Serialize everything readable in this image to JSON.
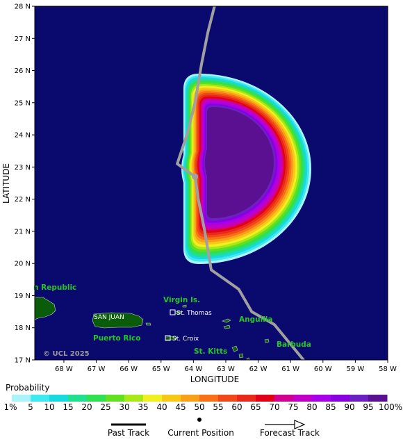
{
  "map": {
    "ylabel": "LATITUDE",
    "xlabel": "LONGITUDE",
    "lat_ticks": [
      "28 N",
      "27 N",
      "26 N",
      "25 N",
      "24 N",
      "23 N",
      "22 N",
      "21 N",
      "20 N",
      "19 N",
      "18 N",
      "17 N"
    ],
    "lon_ticks": [
      "68 W",
      "67 W",
      "66 W",
      "65 W",
      "64 W",
      "63 W",
      "62 W",
      "61 W",
      "60 W",
      "59 W",
      "58 W"
    ],
    "lat_range": [
      17,
      28
    ],
    "lon_range": [
      -68.9,
      -58
    ],
    "background_color": "#0a0a6e",
    "land_color": "#0a5c0a",
    "track_color": "#a0a0a0",
    "current_position": {
      "lon": -63.95,
      "lat": 22.7
    },
    "track": [
      {
        "lon": -63.35,
        "lat": 28.0
      },
      {
        "lon": -63.55,
        "lat": 27.2
      },
      {
        "lon": -63.75,
        "lat": 26.2
      },
      {
        "lon": -63.95,
        "lat": 25.0
      },
      {
        "lon": -64.2,
        "lat": 24.0
      },
      {
        "lon": -64.5,
        "lat": 23.1
      },
      {
        "lon": -63.95,
        "lat": 22.7
      },
      {
        "lon": -63.85,
        "lat": 22.0
      },
      {
        "lon": -63.65,
        "lat": 21.0
      },
      {
        "lon": -63.45,
        "lat": 19.8
      },
      {
        "lon": -62.6,
        "lat": 19.2
      },
      {
        "lon": -62.2,
        "lat": 18.5
      },
      {
        "lon": -61.5,
        "lat": 18.1
      },
      {
        "lon": -60.6,
        "lat": 17.0
      }
    ],
    "places": [
      {
        "name": "n Republic",
        "style": "green"
      },
      {
        "name": "Virgin Is.",
        "style": "green"
      },
      {
        "name": "St. Thomas",
        "style": "white"
      },
      {
        "name": "SAN JUAN",
        "style": "white"
      },
      {
        "name": "Anguilla",
        "style": "green"
      },
      {
        "name": "Puerto Rico",
        "style": "green"
      },
      {
        "name": "St. Croix",
        "style": "white"
      },
      {
        "name": "Barbuda",
        "style": "green"
      },
      {
        "name": "St. Kitts",
        "style": "green"
      }
    ],
    "copyright": "© UCL 2025"
  },
  "legend": {
    "title": "Probability",
    "scale_labels": [
      "1%",
      "5",
      "10",
      "15",
      "20",
      "25",
      "30",
      "35",
      "40",
      "45",
      "50",
      "55",
      "60",
      "65",
      "70",
      "75",
      "80",
      "85",
      "90",
      "95",
      "100%"
    ],
    "colors": [
      "#a8f4f8",
      "#40e8f0",
      "#18d8e0",
      "#20e090",
      "#30e050",
      "#60e020",
      "#a8e818",
      "#f0f020",
      "#f8c818",
      "#f8a018",
      "#f87018",
      "#f04818",
      "#e82818",
      "#e00018",
      "#d00090",
      "#c000c8",
      "#a800e8",
      "#8800e0",
      "#6c20c0",
      "#5a1090"
    ],
    "track_legend": {
      "past": "Past Track",
      "current": "Current Position",
      "forecast": "Forecast Track"
    }
  }
}
